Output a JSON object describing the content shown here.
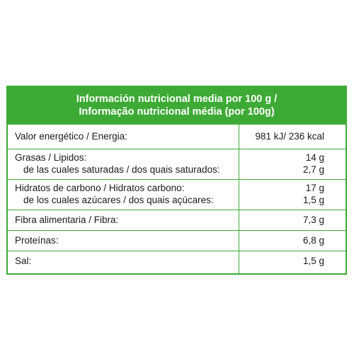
{
  "table": {
    "title_line1": "Información nutricional media por 100 g /",
    "title_line2": "Informação nutricional média (por 100g)",
    "rows": [
      {
        "label": "Valor energético / Energia:",
        "value": "981 kJ/ 236 kcal"
      },
      {
        "label": "Grasas / Lipidos:",
        "value": "14 g",
        "sublabel": "de las cuales saturadas / dos quais saturados:",
        "subvalue": "2,7 g"
      },
      {
        "label": "Hidratos de carbono / Hidratos carbono:",
        "value": "17 g",
        "sublabel": "de los cuales azúcares / dos quais açúcares:",
        "subvalue": "1,5 g"
      },
      {
        "label": "Fibra alimentaria / Fibra:",
        "value": "7,3 g"
      },
      {
        "label": "Proteínas:",
        "value": "6,8 g"
      },
      {
        "label": "Sal:",
        "value": "1,5 g"
      }
    ]
  },
  "colors": {
    "accent": "#3daa35",
    "text": "#1a1a1a"
  }
}
